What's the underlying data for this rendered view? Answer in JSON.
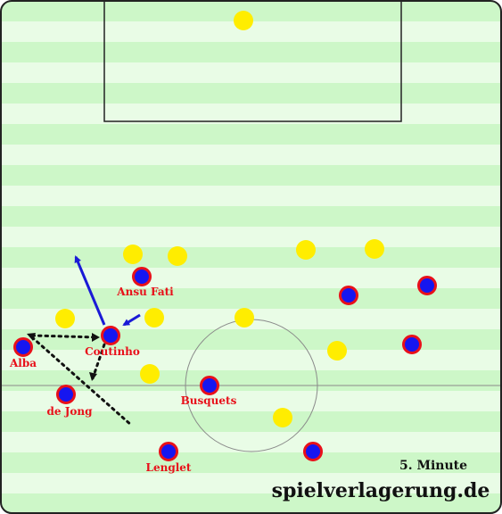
{
  "colors": {
    "stripe_light": "#e9fce6",
    "stripe_dark": "#cdf7c8",
    "line": "#8a8a8a",
    "opponent": "#ffed00",
    "player_fill": "#1616f0",
    "player_ring": "#e8101a",
    "label": "#e8101a",
    "run_arrow": "#1a1ad6",
    "pass_line": "#111111"
  },
  "players": {
    "ansu_fati": "Ansu Fati",
    "coutinho": "Coutinho",
    "alba": "Alba",
    "de_jong": "de Jong",
    "busquets": "Busquets",
    "lenglet": "Lenglet"
  },
  "caption": {
    "minute": "5. Minute",
    "site": "spielverlagerung.de"
  }
}
